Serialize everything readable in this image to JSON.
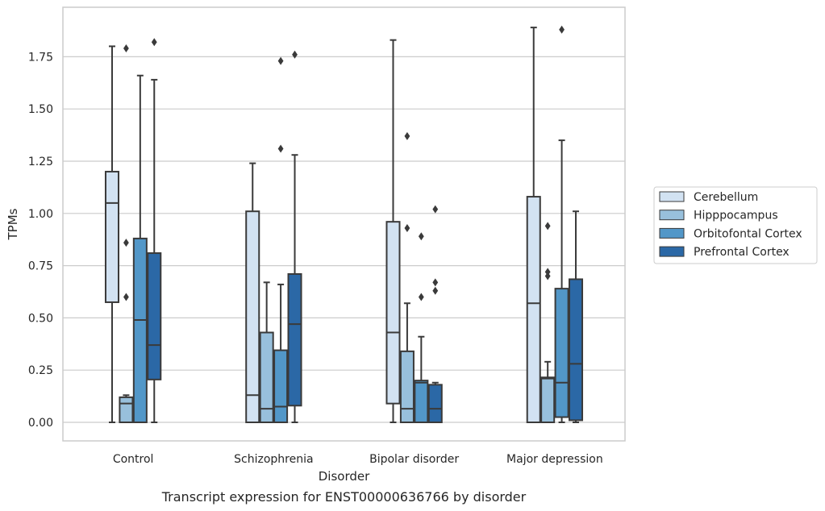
{
  "chart_data": {
    "type": "box",
    "title": "",
    "caption": "Transcript expression for ENST00000636766 by disorder",
    "xlabel": "Disorder",
    "ylabel": "TPMs",
    "ylim": [
      -0.09,
      1.98
    ],
    "yticks": [
      0.0,
      0.25,
      0.5,
      0.75,
      1.0,
      1.25,
      1.5,
      1.75
    ],
    "ytick_labels": [
      "0.00",
      "0.25",
      "0.50",
      "0.75",
      "1.00",
      "1.25",
      "1.50",
      "1.75"
    ],
    "grid": true,
    "legend_position": "right",
    "categories": [
      "Control",
      "Schizophrenia",
      "Bipolar disorder",
      "Major depression"
    ],
    "series": [
      {
        "name": "Cerebellum",
        "color": "#d2e2f2",
        "boxes": [
          {
            "whisker_low": 0.0,
            "q1": 0.575,
            "median": 1.05,
            "q3": 1.2,
            "whisker_high": 1.8,
            "outliers": []
          },
          {
            "whisker_low": 0.0,
            "q1": 0.0,
            "median": 0.13,
            "q3": 1.01,
            "whisker_high": 1.24,
            "outliers": []
          },
          {
            "whisker_low": 0.0,
            "q1": 0.09,
            "median": 0.43,
            "q3": 0.96,
            "whisker_high": 1.83,
            "outliers": []
          },
          {
            "whisker_low": 0.0,
            "q1": 0.0,
            "median": 0.57,
            "q3": 1.08,
            "whisker_high": 1.89,
            "outliers": []
          }
        ]
      },
      {
        "name": "Hipppocampus",
        "color": "#98c0dc",
        "boxes": [
          {
            "whisker_low": 0.0,
            "q1": 0.0,
            "median": 0.09,
            "q3": 0.12,
            "whisker_high": 0.13,
            "outliers": [
              0.86,
              0.6,
              1.79
            ]
          },
          {
            "whisker_low": 0.0,
            "q1": 0.0,
            "median": 0.065,
            "q3": 0.43,
            "whisker_high": 0.67,
            "outliers": []
          },
          {
            "whisker_low": 0.0,
            "q1": 0.0,
            "median": 0.065,
            "q3": 0.34,
            "whisker_high": 0.57,
            "outliers": [
              0.93,
              1.37
            ]
          },
          {
            "whisker_low": 0.0,
            "q1": 0.0,
            "median": 0.21,
            "q3": 0.215,
            "whisker_high": 0.29,
            "outliers": [
              0.94,
              0.72,
              0.7
            ]
          }
        ]
      },
      {
        "name": "Orbitofontal Cortex",
        "color": "#5297c8",
        "boxes": [
          {
            "whisker_low": 0.0,
            "q1": 0.0,
            "median": 0.49,
            "q3": 0.88,
            "whisker_high": 1.66,
            "outliers": []
          },
          {
            "whisker_low": 0.0,
            "q1": 0.0,
            "median": 0.075,
            "q3": 0.345,
            "whisker_high": 0.66,
            "outliers": [
              1.31,
              1.73
            ]
          },
          {
            "whisker_low": 0.0,
            "q1": 0.0,
            "median": 0.19,
            "q3": 0.2,
            "whisker_high": 0.41,
            "outliers": [
              0.6,
              0.89
            ]
          },
          {
            "whisker_low": 0.0,
            "q1": 0.025,
            "median": 0.19,
            "q3": 0.64,
            "whisker_high": 1.35,
            "outliers": [
              1.88
            ]
          }
        ]
      },
      {
        "name": "Prefrontal Cortex",
        "color": "#2b68a6",
        "boxes": [
          {
            "whisker_low": 0.0,
            "q1": 0.205,
            "median": 0.37,
            "q3": 0.81,
            "whisker_high": 1.64,
            "outliers": [
              1.82
            ]
          },
          {
            "whisker_low": 0.0,
            "q1": 0.08,
            "median": 0.47,
            "q3": 0.71,
            "whisker_high": 1.28,
            "outliers": [
              1.76
            ]
          },
          {
            "whisker_low": 0.0,
            "q1": 0.0,
            "median": 0.065,
            "q3": 0.18,
            "whisker_high": 0.19,
            "outliers": [
              0.63,
              0.67,
              1.02
            ]
          },
          {
            "whisker_low": 0.0,
            "q1": 0.01,
            "median": 0.28,
            "q3": 0.685,
            "whisker_high": 1.01,
            "outliers": []
          }
        ]
      }
    ]
  }
}
